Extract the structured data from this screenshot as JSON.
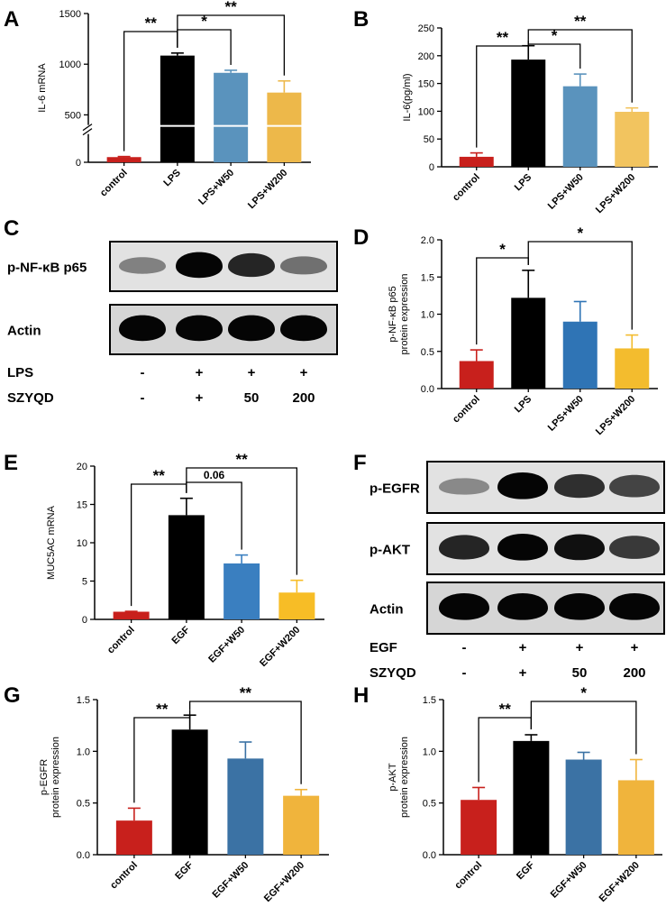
{
  "colors": {
    "control": "#c8201c",
    "LPS": "#000000",
    "W50_A": "#5a93bd",
    "W200_A": "#edb84a",
    "W50_B": "#5a93bd",
    "W200_B": "#f2c45f",
    "W50_D": "#2f74b5",
    "W200_D": "#f3bc2e",
    "W50_E": "#3a7fc0",
    "W200_E": "#f7bd26",
    "W50_G": "#3b72a4",
    "W200_G": "#f0b43c",
    "W50_H": "#3b72a4",
    "W200_H": "#f0b43c"
  },
  "panels": {
    "A": "A",
    "B": "B",
    "C": "C",
    "D": "D",
    "E": "E",
    "F": "F",
    "G": "G",
    "H": "H"
  },
  "chart_data": [
    {
      "panel": "A",
      "type": "bar",
      "ylabel": "IL-6 mRNA",
      "categories": [
        "control",
        "LPS",
        "LPS+W50",
        "LPS+W200"
      ],
      "values": [
        55,
        1085,
        915,
        720
      ],
      "errors": [
        6,
        25,
        25,
        115
      ],
      "axis_break": [
        300,
        400
      ],
      "ylim": [
        0,
        1500
      ],
      "yticks": [
        "0",
        "500",
        "1000",
        "1500"
      ],
      "significance": [
        {
          "from": 0,
          "to": 1,
          "label": "**"
        },
        {
          "from": 1,
          "to": 2,
          "label": "*"
        },
        {
          "from": 1,
          "to": 3,
          "label": "**"
        }
      ]
    },
    {
      "panel": "B",
      "type": "bar",
      "ylabel": "IL-6(pg/ml)",
      "categories": [
        "control",
        "LPS",
        "LPS+W50",
        "LPS+W200"
      ],
      "values": [
        18,
        193,
        145,
        99
      ],
      "errors": [
        7,
        25,
        22,
        7
      ],
      "ylim": [
        0,
        250
      ],
      "yticks": [
        "0",
        "50",
        "100",
        "150",
        "200",
        "250"
      ],
      "significance": [
        {
          "from": 0,
          "to": 1,
          "label": "**"
        },
        {
          "from": 1,
          "to": 2,
          "label": "*"
        },
        {
          "from": 1,
          "to": 3,
          "label": "**"
        }
      ]
    },
    {
      "panel": "D",
      "type": "bar",
      "ylabel": "p-NF-κB p65\nprotein expression",
      "categories": [
        "control",
        "LPS",
        "LPS+W50",
        "LPS+W200"
      ],
      "values": [
        0.37,
        1.22,
        0.9,
        0.54
      ],
      "errors": [
        0.15,
        0.37,
        0.27,
        0.18
      ],
      "ylim": [
        0,
        2.0
      ],
      "yticks": [
        "0.0",
        "0.5",
        "1.0",
        "1.5",
        "2.0"
      ],
      "significance": [
        {
          "from": 0,
          "to": 1,
          "label": "*"
        },
        {
          "from": 1,
          "to": 3,
          "label": "*"
        }
      ]
    },
    {
      "panel": "E",
      "type": "bar",
      "ylabel": "MUC5AC mRNA",
      "categories": [
        "control",
        "EGF",
        "EGF+W50",
        "EGF+W200"
      ],
      "values": [
        1.0,
        13.6,
        7.3,
        3.5
      ],
      "errors": [
        0.05,
        2.2,
        1.1,
        1.6
      ],
      "ylim": [
        0,
        20
      ],
      "yticks": [
        "0",
        "5",
        "10",
        "15",
        "20"
      ],
      "significance": [
        {
          "from": 0,
          "to": 1,
          "label": "**"
        },
        {
          "from": 1,
          "to": 2,
          "label": "0.06"
        },
        {
          "from": 1,
          "to": 3,
          "label": "**"
        }
      ]
    },
    {
      "panel": "G",
      "type": "bar",
      "ylabel": "p-EGFR\nprotein expression",
      "categories": [
        "control",
        "EGF",
        "EGF+W50",
        "EGF+W200"
      ],
      "values": [
        0.33,
        1.21,
        0.93,
        0.57
      ],
      "errors": [
        0.12,
        0.14,
        0.16,
        0.06
      ],
      "ylim": [
        0,
        1.5
      ],
      "yticks": [
        "0.0",
        "0.5",
        "1.0",
        "1.5"
      ],
      "significance": [
        {
          "from": 0,
          "to": 1,
          "label": "**"
        },
        {
          "from": 1,
          "to": 3,
          "label": "**"
        }
      ]
    },
    {
      "panel": "H",
      "type": "bar",
      "ylabel": "p-AKT\nprotein expression",
      "categories": [
        "control",
        "EGF",
        "EGF+W50",
        "EGF+W200"
      ],
      "values": [
        0.53,
        1.1,
        0.92,
        0.72
      ],
      "errors": [
        0.12,
        0.06,
        0.07,
        0.2
      ],
      "ylim": [
        0,
        1.5
      ],
      "yticks": [
        "0.0",
        "0.5",
        "1.0",
        "1.5"
      ],
      "significance": [
        {
          "from": 0,
          "to": 1,
          "label": "**"
        },
        {
          "from": 1,
          "to": 3,
          "label": "*"
        }
      ]
    }
  ],
  "blot_C": {
    "bands": [
      {
        "label": "p-NF-κB p65",
        "intensities": [
          0.35,
          1.0,
          0.85,
          0.45
        ]
      },
      {
        "label": "Actin",
        "intensities": [
          1.0,
          1.0,
          1.0,
          1.0
        ]
      }
    ],
    "row_labels": [
      "LPS",
      "SZYQD"
    ],
    "row_values": [
      [
        "-",
        "+",
        "+",
        "+"
      ],
      [
        "-",
        "+",
        "50",
        "200"
      ]
    ]
  },
  "blot_F": {
    "bands": [
      {
        "label": "p-EGFR",
        "intensities": [
          0.3,
          1.0,
          0.8,
          0.7
        ]
      },
      {
        "label": "p-AKT",
        "intensities": [
          0.85,
          1.0,
          0.95,
          0.75
        ]
      },
      {
        "label": "Actin",
        "intensities": [
          1.0,
          1.0,
          1.0,
          1.0
        ]
      }
    ],
    "row_labels": [
      "EGF",
      "SZYQD"
    ],
    "row_values": [
      [
        "-",
        "+",
        "+",
        "+"
      ],
      [
        "-",
        "+",
        "50",
        "200"
      ]
    ]
  }
}
